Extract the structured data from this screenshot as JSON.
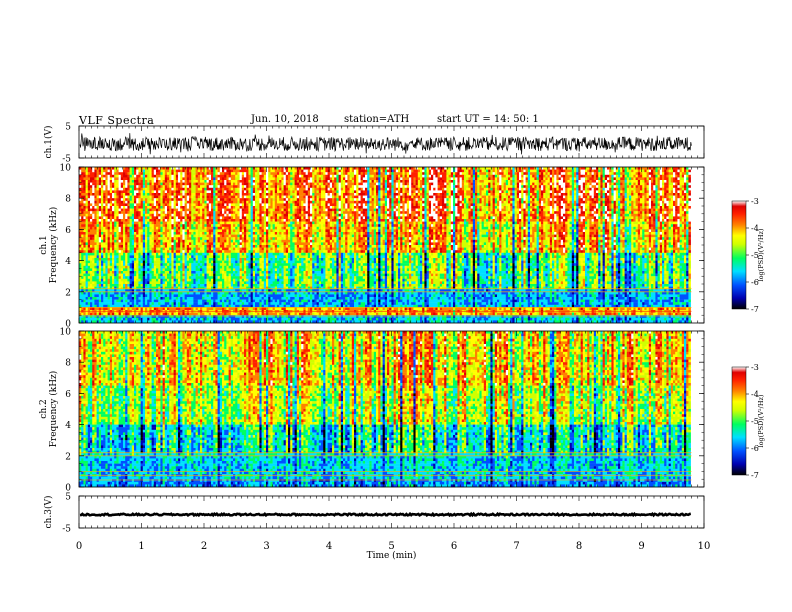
{
  "header": {
    "title": "VLF  Spectra",
    "date": "Jun. 10, 2018",
    "station": "station=ATH",
    "start": "start  UT  =   14: 50: 1"
  },
  "colors": {
    "background": "#ffffff",
    "axis": "#000000",
    "waveform": "#000000",
    "colormap": [
      "#000000",
      "#0000b0",
      "#0050ff",
      "#00e0ff",
      "#00ff60",
      "#d0ff00",
      "#ffff00",
      "#ff8000",
      "#ff2000",
      "#e00000",
      "#ffffff"
    ]
  },
  "chart_data": [
    {
      "type": "line",
      "panel": "ch1-waveform",
      "ylabel": "ch.1(V)",
      "ylim": [
        -5,
        5
      ],
      "yticks": [
        "5",
        "-5"
      ],
      "xlim": [
        0,
        10
      ],
      "x_end": 9.8,
      "mean": -0.6,
      "amplitude": 2.2
    },
    {
      "type": "heatmap",
      "panel": "ch1-spectrogram",
      "ylabel": "ch.1\nFrequency  (kHz)",
      "ylim": [
        0,
        10
      ],
      "yticks": [
        "0",
        "2",
        "4",
        "6",
        "8",
        "10"
      ],
      "xlim": [
        0,
        10
      ],
      "x_end": 9.8,
      "colorbar": {
        "label": "log(PSD)(V²/Hz)",
        "range": [
          -7,
          -3
        ],
        "ticks": [
          "-3",
          "-4",
          "-5",
          "-6",
          "-7"
        ]
      },
      "bands": [
        {
          "f": [
            0,
            0.5
          ],
          "value": -5.6
        },
        {
          "f": [
            0.5,
            1.0
          ],
          "value": -3.9
        },
        {
          "f": [
            1.0,
            2.2
          ],
          "value": -5.7
        },
        {
          "f": [
            2.2,
            4.5
          ],
          "value": -5.0
        },
        {
          "f": [
            4.5,
            6.5
          ],
          "value": -4.1
        },
        {
          "f": [
            6.5,
            10
          ],
          "value": -3.7
        }
      ]
    },
    {
      "type": "heatmap",
      "panel": "ch2-spectrogram",
      "ylabel": "ch.2\nFrequency  (kHz)",
      "ylim": [
        0,
        10
      ],
      "yticks": [
        "0",
        "2",
        "4",
        "6",
        "8",
        "10"
      ],
      "xlim": [
        0,
        10
      ],
      "x_end": 9.8,
      "colorbar": {
        "label": "log(PSD)(V²/Hz)",
        "range": [
          -7,
          -3
        ],
        "ticks": [
          "-3",
          "-4",
          "-5",
          "-6",
          "-7"
        ]
      },
      "bands": [
        {
          "f": [
            0,
            0.5
          ],
          "value": -5.9
        },
        {
          "f": [
            0.5,
            2.0
          ],
          "value": -5.6
        },
        {
          "f": [
            2.0,
            4.0
          ],
          "value": -5.4
        },
        {
          "f": [
            4.0,
            6.5
          ],
          "value": -4.6
        },
        {
          "f": [
            6.5,
            10
          ],
          "value": -4.2
        }
      ]
    },
    {
      "type": "line",
      "panel": "ch3-waveform",
      "ylabel": "ch.3(V)",
      "ylim": [
        -5,
        5
      ],
      "yticks": [
        "5",
        "-5"
      ],
      "xlim": [
        0,
        10
      ],
      "x_end": 9.8,
      "mean": -0.8,
      "amplitude": 0.25
    }
  ],
  "xaxis": {
    "label": "Time  (min)",
    "ticks": [
      "0",
      "1",
      "2",
      "3",
      "4",
      "5",
      "6",
      "7",
      "8",
      "9",
      "10"
    ]
  }
}
